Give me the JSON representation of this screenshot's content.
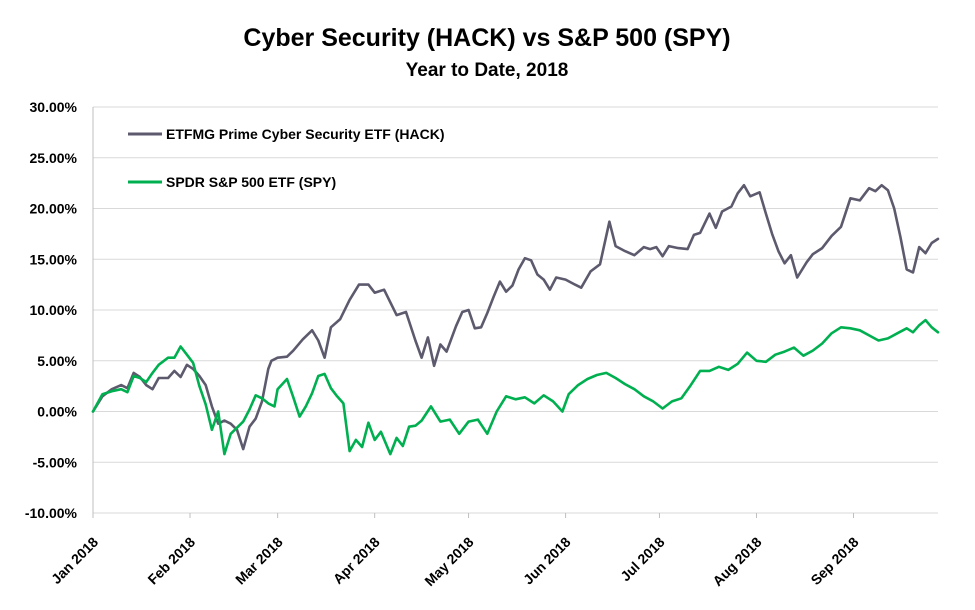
{
  "chart_data": {
    "type": "line",
    "title": "Cyber Security (HACK) vs S&P 500 (SPY)",
    "subtitle": "Year to Date, 2018",
    "y_ticks": [
      "30.00%",
      "25.00%",
      "20.00%",
      "15.00%",
      "10.00%",
      "5.00%",
      "0.00%",
      "-5.00%",
      "-10.00%"
    ],
    "y_tick_values": [
      30,
      25,
      20,
      15,
      10,
      5,
      0,
      -5,
      -10
    ],
    "ylim": [
      -10,
      30
    ],
    "x_ticks": [
      "Jan 2018",
      "Feb 2018",
      "Mar 2018",
      "Apr 2018",
      "May 2018",
      "Jun 2018",
      "Jul 2018",
      "Aug 2018",
      "Sep 2018"
    ],
    "x_tick_values": [
      "2018-01-01",
      "2018-02-01",
      "2018-03-01",
      "2018-04-01",
      "2018-05-01",
      "2018-06-01",
      "2018-07-01",
      "2018-08-01",
      "2018-09-01"
    ],
    "xlim": [
      "2018-01-01",
      "2018-09-28"
    ],
    "grid": true,
    "legend_position": "top-left",
    "series": [
      {
        "name": "ETFMG Prime Cyber Security ETF (HACK)",
        "color": "#5e5a6e",
        "points": [
          [
            "2018-01-01",
            0.0
          ],
          [
            "2018-01-04",
            1.5
          ],
          [
            "2018-01-07",
            2.2
          ],
          [
            "2018-01-10",
            2.6
          ],
          [
            "2018-01-12",
            2.3
          ],
          [
            "2018-01-14",
            3.8
          ],
          [
            "2018-01-16",
            3.4
          ],
          [
            "2018-01-18",
            2.6
          ],
          [
            "2018-01-20",
            2.2
          ],
          [
            "2018-01-22",
            3.3
          ],
          [
            "2018-01-25",
            3.3
          ],
          [
            "2018-01-27",
            4.0
          ],
          [
            "2018-01-29",
            3.4
          ],
          [
            "2018-01-31",
            4.6
          ],
          [
            "2018-02-02",
            4.2
          ],
          [
            "2018-02-04",
            3.5
          ],
          [
            "2018-02-06",
            2.6
          ],
          [
            "2018-02-08",
            0.5
          ],
          [
            "2018-02-10",
            -1.2
          ],
          [
            "2018-02-12",
            -0.9
          ],
          [
            "2018-02-14",
            -1.2
          ],
          [
            "2018-02-16",
            -1.8
          ],
          [
            "2018-02-18",
            -3.7
          ],
          [
            "2018-02-20",
            -1.5
          ],
          [
            "2018-02-22",
            -0.7
          ],
          [
            "2018-02-24",
            1.0
          ],
          [
            "2018-02-26",
            4.2
          ],
          [
            "2018-02-27",
            5.0
          ],
          [
            "2018-03-01",
            5.3
          ],
          [
            "2018-03-04",
            5.4
          ],
          [
            "2018-03-06",
            6.0
          ],
          [
            "2018-03-09",
            7.1
          ],
          [
            "2018-03-12",
            8.0
          ],
          [
            "2018-03-14",
            7.0
          ],
          [
            "2018-03-16",
            5.3
          ],
          [
            "2018-03-18",
            8.3
          ],
          [
            "2018-03-21",
            9.1
          ],
          [
            "2018-03-24",
            11.0
          ],
          [
            "2018-03-27",
            12.5
          ],
          [
            "2018-03-30",
            12.5
          ],
          [
            "2018-04-01",
            11.7
          ],
          [
            "2018-04-04",
            12.0
          ],
          [
            "2018-04-08",
            9.5
          ],
          [
            "2018-04-11",
            9.8
          ],
          [
            "2018-04-14",
            7.0
          ],
          [
            "2018-04-16",
            5.3
          ],
          [
            "2018-04-18",
            7.3
          ],
          [
            "2018-04-20",
            4.5
          ],
          [
            "2018-04-22",
            6.6
          ],
          [
            "2018-04-24",
            5.9
          ],
          [
            "2018-04-27",
            8.4
          ],
          [
            "2018-04-29",
            9.8
          ],
          [
            "2018-05-01",
            10.0
          ],
          [
            "2018-05-03",
            8.2
          ],
          [
            "2018-05-05",
            8.3
          ],
          [
            "2018-05-07",
            9.7
          ],
          [
            "2018-05-09",
            11.3
          ],
          [
            "2018-05-11",
            12.8
          ],
          [
            "2018-05-13",
            11.8
          ],
          [
            "2018-05-15",
            12.4
          ],
          [
            "2018-05-17",
            14.0
          ],
          [
            "2018-05-19",
            15.1
          ],
          [
            "2018-05-21",
            14.9
          ],
          [
            "2018-05-23",
            13.5
          ],
          [
            "2018-05-25",
            13.0
          ],
          [
            "2018-05-27",
            12.0
          ],
          [
            "2018-05-29",
            13.2
          ],
          [
            "2018-06-01",
            13.0
          ],
          [
            "2018-06-04",
            12.5
          ],
          [
            "2018-06-06",
            12.2
          ],
          [
            "2018-06-09",
            13.8
          ],
          [
            "2018-06-12",
            14.5
          ],
          [
            "2018-06-15",
            18.7
          ],
          [
            "2018-06-17",
            16.3
          ],
          [
            "2018-06-20",
            15.8
          ],
          [
            "2018-06-23",
            15.4
          ],
          [
            "2018-06-26",
            16.2
          ],
          [
            "2018-06-28",
            16.0
          ],
          [
            "2018-06-30",
            16.2
          ],
          [
            "2018-07-02",
            15.3
          ],
          [
            "2018-07-04",
            16.3
          ],
          [
            "2018-07-07",
            16.1
          ],
          [
            "2018-07-10",
            16.0
          ],
          [
            "2018-07-12",
            17.4
          ],
          [
            "2018-07-14",
            17.6
          ],
          [
            "2018-07-17",
            19.5
          ],
          [
            "2018-07-19",
            18.1
          ],
          [
            "2018-07-21",
            19.7
          ],
          [
            "2018-07-24",
            20.2
          ],
          [
            "2018-07-26",
            21.5
          ],
          [
            "2018-07-28",
            22.3
          ],
          [
            "2018-07-30",
            21.2
          ],
          [
            "2018-08-02",
            21.6
          ],
          [
            "2018-08-04",
            19.5
          ],
          [
            "2018-08-06",
            17.5
          ],
          [
            "2018-08-08",
            15.8
          ],
          [
            "2018-08-10",
            14.6
          ],
          [
            "2018-08-12",
            15.4
          ],
          [
            "2018-08-14",
            13.2
          ],
          [
            "2018-08-17",
            14.7
          ],
          [
            "2018-08-19",
            15.5
          ],
          [
            "2018-08-22",
            16.1
          ],
          [
            "2018-08-25",
            17.3
          ],
          [
            "2018-08-28",
            18.2
          ],
          [
            "2018-08-31",
            21.0
          ],
          [
            "2018-09-03",
            20.8
          ],
          [
            "2018-09-06",
            22.0
          ],
          [
            "2018-09-08",
            21.7
          ],
          [
            "2018-09-10",
            22.3
          ],
          [
            "2018-09-12",
            21.8
          ],
          [
            "2018-09-14",
            20.0
          ],
          [
            "2018-09-16",
            17.2
          ],
          [
            "2018-09-18",
            14.0
          ],
          [
            "2018-09-20",
            13.7
          ],
          [
            "2018-09-22",
            16.2
          ],
          [
            "2018-09-24",
            15.6
          ],
          [
            "2018-09-26",
            16.6
          ],
          [
            "2018-09-28",
            17.0
          ]
        ]
      },
      {
        "name": "SPDR S&P 500 ETF (SPY)",
        "color": "#00b050",
        "points": [
          [
            "2018-01-01",
            0.0
          ],
          [
            "2018-01-04",
            1.7
          ],
          [
            "2018-01-07",
            2.0
          ],
          [
            "2018-01-10",
            2.2
          ],
          [
            "2018-01-12",
            1.9
          ],
          [
            "2018-01-14",
            3.5
          ],
          [
            "2018-01-16",
            3.3
          ],
          [
            "2018-01-18",
            2.9
          ],
          [
            "2018-01-20",
            3.8
          ],
          [
            "2018-01-22",
            4.6
          ],
          [
            "2018-01-25",
            5.3
          ],
          [
            "2018-01-27",
            5.3
          ],
          [
            "2018-01-29",
            6.4
          ],
          [
            "2018-01-31",
            5.6
          ],
          [
            "2018-02-02",
            4.8
          ],
          [
            "2018-02-04",
            2.5
          ],
          [
            "2018-02-06",
            0.7
          ],
          [
            "2018-02-08",
            -1.8
          ],
          [
            "2018-02-10",
            0.0
          ],
          [
            "2018-02-12",
            -4.2
          ],
          [
            "2018-02-14",
            -2.2
          ],
          [
            "2018-02-16",
            -1.6
          ],
          [
            "2018-02-18",
            -1.0
          ],
          [
            "2018-02-20",
            0.2
          ],
          [
            "2018-02-22",
            1.6
          ],
          [
            "2018-02-24",
            1.3
          ],
          [
            "2018-02-26",
            0.8
          ],
          [
            "2018-02-28",
            0.5
          ],
          [
            "2018-03-01",
            2.2
          ],
          [
            "2018-03-04",
            3.2
          ],
          [
            "2018-03-06",
            1.4
          ],
          [
            "2018-03-08",
            -0.5
          ],
          [
            "2018-03-10",
            0.5
          ],
          [
            "2018-03-12",
            1.8
          ],
          [
            "2018-03-14",
            3.5
          ],
          [
            "2018-03-16",
            3.7
          ],
          [
            "2018-03-18",
            2.3
          ],
          [
            "2018-03-20",
            1.5
          ],
          [
            "2018-03-22",
            0.8
          ],
          [
            "2018-03-24",
            -3.9
          ],
          [
            "2018-03-26",
            -2.8
          ],
          [
            "2018-03-28",
            -3.5
          ],
          [
            "2018-03-30",
            -1.1
          ],
          [
            "2018-04-01",
            -2.8
          ],
          [
            "2018-04-03",
            -2.0
          ],
          [
            "2018-04-06",
            -4.2
          ],
          [
            "2018-04-08",
            -2.6
          ],
          [
            "2018-04-10",
            -3.4
          ],
          [
            "2018-04-12",
            -1.5
          ],
          [
            "2018-04-14",
            -1.4
          ],
          [
            "2018-04-16",
            -0.9
          ],
          [
            "2018-04-19",
            0.5
          ],
          [
            "2018-04-22",
            -1.0
          ],
          [
            "2018-04-25",
            -0.8
          ],
          [
            "2018-04-28",
            -2.2
          ],
          [
            "2018-05-01",
            -1.0
          ],
          [
            "2018-05-04",
            -0.8
          ],
          [
            "2018-05-07",
            -2.2
          ],
          [
            "2018-05-10",
            0.0
          ],
          [
            "2018-05-13",
            1.5
          ],
          [
            "2018-05-16",
            1.2
          ],
          [
            "2018-05-19",
            1.4
          ],
          [
            "2018-05-22",
            0.8
          ],
          [
            "2018-05-25",
            1.6
          ],
          [
            "2018-05-28",
            1.0
          ],
          [
            "2018-05-31",
            0.0
          ],
          [
            "2018-06-02",
            1.7
          ],
          [
            "2018-06-05",
            2.6
          ],
          [
            "2018-06-08",
            3.2
          ],
          [
            "2018-06-11",
            3.6
          ],
          [
            "2018-06-14",
            3.8
          ],
          [
            "2018-06-17",
            3.3
          ],
          [
            "2018-06-20",
            2.7
          ],
          [
            "2018-06-23",
            2.2
          ],
          [
            "2018-06-26",
            1.5
          ],
          [
            "2018-06-29",
            1.0
          ],
          [
            "2018-07-02",
            0.3
          ],
          [
            "2018-07-05",
            1.0
          ],
          [
            "2018-07-08",
            1.3
          ],
          [
            "2018-07-11",
            2.6
          ],
          [
            "2018-07-14",
            4.0
          ],
          [
            "2018-07-17",
            4.0
          ],
          [
            "2018-07-20",
            4.4
          ],
          [
            "2018-07-23",
            4.1
          ],
          [
            "2018-07-26",
            4.7
          ],
          [
            "2018-07-29",
            5.8
          ],
          [
            "2018-08-01",
            5.0
          ],
          [
            "2018-08-04",
            4.9
          ],
          [
            "2018-08-07",
            5.6
          ],
          [
            "2018-08-10",
            5.9
          ],
          [
            "2018-08-13",
            6.3
          ],
          [
            "2018-08-16",
            5.5
          ],
          [
            "2018-08-19",
            6.0
          ],
          [
            "2018-08-22",
            6.7
          ],
          [
            "2018-08-25",
            7.7
          ],
          [
            "2018-08-28",
            8.3
          ],
          [
            "2018-08-31",
            8.2
          ],
          [
            "2018-09-03",
            8.0
          ],
          [
            "2018-09-06",
            7.5
          ],
          [
            "2018-09-09",
            7.0
          ],
          [
            "2018-09-12",
            7.2
          ],
          [
            "2018-09-15",
            7.7
          ],
          [
            "2018-09-18",
            8.2
          ],
          [
            "2018-09-20",
            7.8
          ],
          [
            "2018-09-22",
            8.5
          ],
          [
            "2018-09-24",
            9.0
          ],
          [
            "2018-09-26",
            8.3
          ],
          [
            "2018-09-28",
            7.8
          ]
        ]
      }
    ]
  }
}
